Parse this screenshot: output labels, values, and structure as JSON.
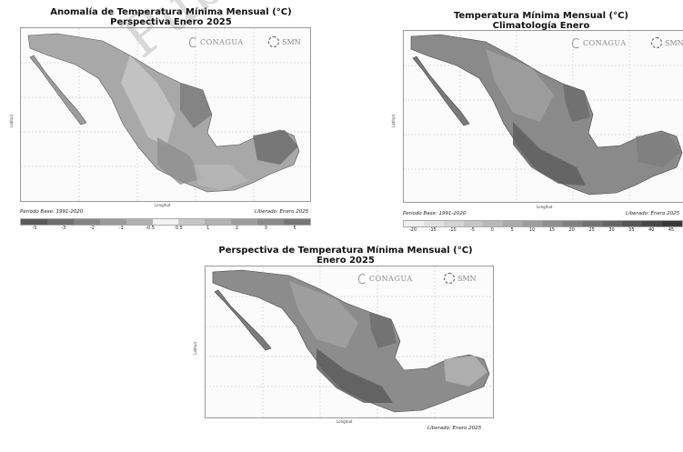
{
  "panels": [
    {
      "id": "anomaly",
      "title_line1": "Anomalía de Temperatura Mínima Mensual (°C)",
      "title_line2": "Perspectiva Enero 2025",
      "logo_left": "CONAGUA",
      "logo_right": "SMN",
      "xlabel": "Longitud",
      "ylabel": "Latitud",
      "note_left": "Periodo Base: 1991-2020",
      "note_right": "Liberado: Enero 2025",
      "colorbar_ticks": [
        "-5",
        "-3",
        "-2",
        "-1",
        "-0.5",
        "0.5",
        "1",
        "2",
        "3",
        "5"
      ]
    },
    {
      "id": "climatology",
      "title_line1": "Temperatura Mínima Mensual (°C)",
      "title_line2": "Climatología Enero",
      "logo_left": "CONAGUA",
      "logo_right": "SMN",
      "xlabel": "Longitud",
      "ylabel": "Latitud",
      "note_left": "Periodo Base: 1991-2020",
      "note_right": "Liberado: Enero 2025",
      "colorbar_ticks": [
        "-20",
        "-15",
        "-10",
        "-5",
        "0",
        "5",
        "10",
        "15",
        "20",
        "25",
        "30",
        "35",
        "40",
        "45"
      ]
    },
    {
      "id": "forecast",
      "title_line1": "Perspectiva de Temperatura Mínima Mensual (°C)",
      "title_line2": "Enero 2025",
      "logo_left": "CONAGUA",
      "logo_right": "SMN",
      "xlabel": "Longitud",
      "ylabel": "Latitud",
      "note_right": "Liberado: Enero 2025"
    }
  ],
  "watermark": "Publica sin validez",
  "colors": {
    "land_dark": "#6d6d6d",
    "land_mid": "#9a9a9a",
    "land_light": "#c4c4c4",
    "water": "#f4f4f4",
    "grid": "#b8b8b8"
  }
}
